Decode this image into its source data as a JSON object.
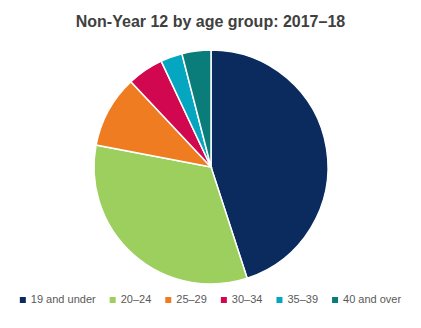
{
  "chart_data": {
    "type": "pie",
    "title": "Non-Year 12 by age group: 2017–18",
    "categories": [
      "19 and under",
      "20–24",
      "25–29",
      "30–34",
      "35–39",
      "40 and over"
    ],
    "values": [
      45,
      33,
      10,
      5,
      3,
      4
    ],
    "colors": [
      "#0b2b5e",
      "#9ccf5d",
      "#f07c22",
      "#d1084f",
      "#05a6c0",
      "#0a7d7b"
    ],
    "legend": "bottom"
  }
}
